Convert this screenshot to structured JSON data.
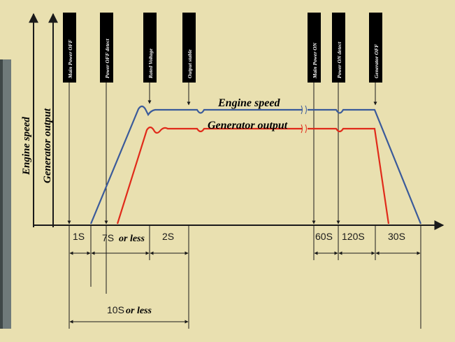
{
  "axis_labels": {
    "engine_speed": "Engine speed",
    "generator_output": "Generator output"
  },
  "curve_labels": {
    "engine_speed": "Engine speed",
    "generator_output": "Generator output"
  },
  "event_boxes": [
    {
      "id": "main-power-off",
      "label": "Main Power OFF"
    },
    {
      "id": "power-off-detect",
      "label": "Power OFF detect"
    },
    {
      "id": "rated-voltage",
      "label": "Rated Voltage"
    },
    {
      "id": "output-stable",
      "label": "Output stable"
    },
    {
      "id": "main-power-on",
      "label": "Main Power ON"
    },
    {
      "id": "power-on-detect",
      "label": "Power ON detect"
    },
    {
      "id": "generator-off",
      "label": "Generator OFF"
    }
  ],
  "timing": {
    "t1": "1S",
    "t2_prefix": "7S",
    "t2_suffix": "or less",
    "t3": "2S",
    "t4": "60S",
    "t5": "120S",
    "t6": "30S",
    "total_prefix": "10S",
    "total_suffix": "or less"
  },
  "colors": {
    "background": "#e9e0b0",
    "engine_curve": "#3a5a9a",
    "generator_curve": "#e02a1a",
    "axis": "#1a1a1a",
    "event_box": "#000000",
    "event_text": "#ffffff",
    "left_panel": "#6f7a7a"
  }
}
